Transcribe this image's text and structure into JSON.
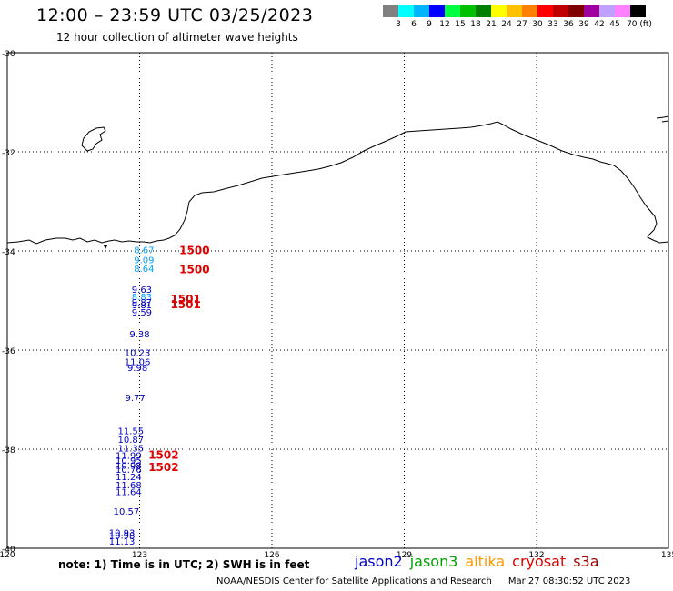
{
  "header": {
    "title": "12:00 – 23:59 UTC 03/25/2023",
    "subtitle": "12 hour collection of altimeter wave heights"
  },
  "legend": {
    "colors": [
      "#808080",
      "#00ffff",
      "#00b4ff",
      "#0000ff",
      "#00ff40",
      "#00c000",
      "#008000",
      "#ffff00",
      "#ffc000",
      "#ff8000",
      "#ff0000",
      "#c00000",
      "#800000",
      "#a000a0",
      "#c0a0ff",
      "#ff80ff",
      "#000000"
    ],
    "tick_labels": [
      "3",
      "6",
      "9",
      "12",
      "15",
      "18",
      "21",
      "24",
      "27",
      "30",
      "33",
      "36",
      "39",
      "42",
      "45",
      "70 (ft)"
    ]
  },
  "axes": {
    "lat_labels": [
      "-30",
      "-32",
      "-34",
      "-36",
      "-38",
      "-40"
    ],
    "lon_labels": [
      "120",
      "123",
      "126",
      "129",
      "132",
      "135"
    ]
  },
  "observations": [
    {
      "label": "8.67",
      "lon": 123.1,
      "lat": -33.97,
      "color": "#00a0ff"
    },
    {
      "label": "9.09",
      "lon": 123.1,
      "lat": -34.17,
      "color": "#00a0ff"
    },
    {
      "label": "8.64",
      "lon": 123.1,
      "lat": -34.35,
      "color": "#00a0ff"
    },
    {
      "label": "9.63",
      "lon": 123.05,
      "lat": -34.77,
      "color": "#0000c0"
    },
    {
      "label": "8.83",
      "lon": 123.05,
      "lat": -34.92,
      "color": "#00a0ff"
    },
    {
      "label": "9.87",
      "lon": 123.05,
      "lat": -35.03,
      "color": "#0000c0"
    },
    {
      "label": "9.81",
      "lon": 123.05,
      "lat": -35.08,
      "color": "#0000c0"
    },
    {
      "label": "9.59",
      "lon": 123.05,
      "lat": -35.23,
      "color": "#0000c0"
    },
    {
      "label": "9.38",
      "lon": 123.0,
      "lat": -35.67,
      "color": "#0000c0"
    },
    {
      "label": "10.23",
      "lon": 122.95,
      "lat": -36.05,
      "color": "#0000c0"
    },
    {
      "label": "11.06",
      "lon": 122.95,
      "lat": -36.23,
      "color": "#0000c0"
    },
    {
      "label": "9.98",
      "lon": 122.95,
      "lat": -36.35,
      "color": "#0000c0"
    },
    {
      "label": "9.77",
      "lon": 122.9,
      "lat": -36.95,
      "color": "#0000c0"
    },
    {
      "label": "11.55",
      "lon": 122.8,
      "lat": -37.62,
      "color": "#0000c0"
    },
    {
      "label": "10.87",
      "lon": 122.8,
      "lat": -37.8,
      "color": "#0000c0"
    },
    {
      "label": "11.35",
      "lon": 122.8,
      "lat": -37.97,
      "color": "#0000c0"
    },
    {
      "label": "11.99",
      "lon": 122.75,
      "lat": -38.12,
      "color": "#0000c0"
    },
    {
      "label": "10.95",
      "lon": 122.75,
      "lat": -38.22,
      "color": "#0000c0"
    },
    {
      "label": "10.98",
      "lon": 122.75,
      "lat": -38.32,
      "color": "#0000c0"
    },
    {
      "label": "10.76",
      "lon": 122.75,
      "lat": -38.4,
      "color": "#0000c0"
    },
    {
      "label": "11.24",
      "lon": 122.75,
      "lat": -38.55,
      "color": "#0000c0"
    },
    {
      "label": "11.68",
      "lon": 122.75,
      "lat": -38.72,
      "color": "#0000c0"
    },
    {
      "label": "11.64",
      "lon": 122.75,
      "lat": -38.85,
      "color": "#0000c0"
    },
    {
      "label": "10.57",
      "lon": 122.7,
      "lat": -39.25,
      "color": "#0000c0"
    },
    {
      "label": "10.93",
      "lon": 122.6,
      "lat": -39.68,
      "color": "#0000c0"
    },
    {
      "label": "10.98",
      "lon": 122.6,
      "lat": -39.73,
      "color": "#0000c0"
    },
    {
      "label": "11.13",
      "lon": 122.6,
      "lat": -39.85,
      "color": "#0000c0"
    }
  ],
  "time_labels": [
    {
      "label": "1500",
      "lon": 123.9,
      "lat": -33.97
    },
    {
      "label": "1500",
      "lon": 123.9,
      "lat": -34.36
    },
    {
      "label": "1501",
      "lon": 123.7,
      "lat": -34.95
    },
    {
      "label": "1501",
      "lon": 123.7,
      "lat": -35.06
    },
    {
      "label": "1502",
      "lon": 123.2,
      "lat": -38.1
    },
    {
      "label": "1502",
      "lon": 123.2,
      "lat": -38.35
    }
  ],
  "footer": {
    "note": "note:  1) Time is in UTC;  2) SWH is in feet",
    "satellites": [
      {
        "name": "jason2",
        "color": "#0000d0"
      },
      {
        "name": "jason3",
        "color": "#00a000"
      },
      {
        "name": "altika",
        "color": "#ff9900"
      },
      {
        "name": "cryosat",
        "color": "#e00000"
      },
      {
        "name": "s3a",
        "color": "#a00000"
      }
    ],
    "credit": "NOAA/NESDIS Center for Satellite Applications and Research",
    "timestamp": "Mar 27 08:30:52 UTC 2023"
  }
}
